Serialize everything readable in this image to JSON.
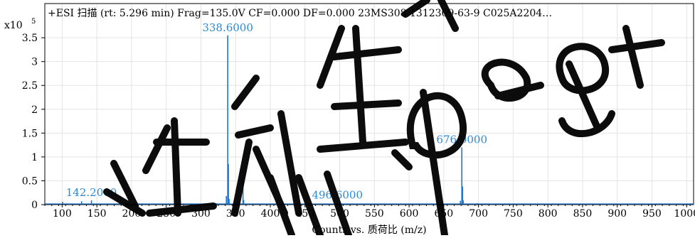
{
  "chart_data": {
    "type": "bar",
    "title": "+ESI 扫描 (rt: 5.296 min) Frag=135.0V CF=0.000 DF=0.000 23MS308 1312309-63-9 C025A2204…",
    "y_multiplier": "x10",
    "y_exponent": "5",
    "xlabel": "Counts vs. 质荷比 (m/z)",
    "ylabel": "",
    "xlim": [
      75,
      1010
    ],
    "ylim": [
      0,
      3.8
    ],
    "x_ticks": [
      100,
      150,
      200,
      250,
      300,
      350,
      400,
      450,
      500,
      550,
      600,
      650,
      700,
      750,
      800,
      850,
      900,
      950,
      1000
    ],
    "y_ticks": [
      0,
      0.5,
      1,
      1.5,
      2,
      2.5,
      3,
      3.5
    ],
    "y_tick_labels": [
      "0",
      "0.5",
      "1",
      "1.5",
      "2",
      "2.5",
      "3",
      "3.5"
    ],
    "grid": true,
    "color": "#1f77d0",
    "peaks": [
      {
        "x": 100.6,
        "y": 0.06
      },
      {
        "x": 128.0,
        "y": 0.07
      },
      {
        "x": 142.2,
        "y": 0.09
      },
      {
        "x": 183.0,
        "y": 0.02
      },
      {
        "x": 243.0,
        "y": 0.02
      },
      {
        "x": 300.0,
        "y": 0.02
      },
      {
        "x": 322.0,
        "y": 0.03
      },
      {
        "x": 336.6,
        "y": 0.18
      },
      {
        "x": 338.6,
        "y": 3.55
      },
      {
        "x": 339.6,
        "y": 0.85
      },
      {
        "x": 340.6,
        "y": 0.12
      },
      {
        "x": 360.6,
        "y": 0.52
      },
      {
        "x": 361.6,
        "y": 0.1
      },
      {
        "x": 376.6,
        "y": 0.02
      },
      {
        "x": 424.0,
        "y": 0.01
      },
      {
        "x": 496.6,
        "y": 0.04
      },
      {
        "x": 674.0,
        "y": 0.08
      },
      {
        "x": 676.0,
        "y": 1.2
      },
      {
        "x": 677.0,
        "y": 0.38
      },
      {
        "x": 678.0,
        "y": 0.09
      },
      {
        "x": 698.0,
        "y": 0.03
      }
    ],
    "annotations": [
      {
        "text": "338.6000",
        "x": 338.6,
        "y": 3.55
      },
      {
        "text": "676.0000",
        "x": 676.0,
        "y": 1.2
      },
      {
        "text": "142.2000",
        "x": 142.2,
        "y": 0.09
      },
      {
        "text": "496.6000",
        "x": 496.6,
        "y": 0.04
      }
    ]
  },
  "colors": {
    "trace": "#1f77d0",
    "label": "#2a8ad6",
    "grid": "#e3e3e3",
    "frame": "#000000",
    "watermark": "#000000"
  }
}
